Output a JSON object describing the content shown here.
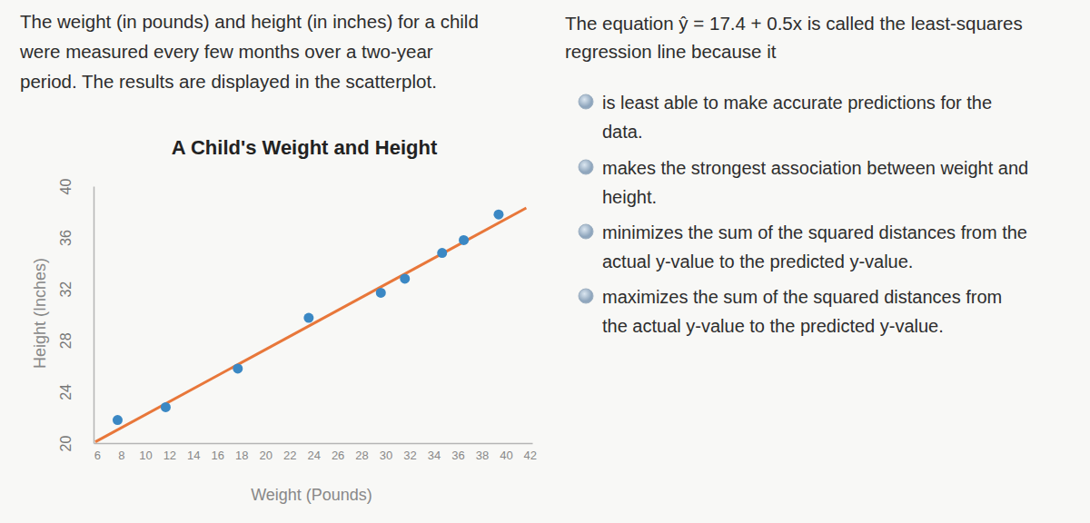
{
  "question": [
    "The weight (in pounds) and height (in inches) for a child",
    "were measured every few months over a two-year",
    "period. The results are displayed in the scatterplot."
  ],
  "prompt": [
    "The equation ŷ = 17.4 + 0.5x is called the least-squares",
    "regression line because it"
  ],
  "options": [
    [
      "is least able to make accurate predictions for the",
      "data."
    ],
    [
      "makes the strongest association between weight and",
      "height."
    ],
    [
      "minimizes the sum of the squared distances from the",
      "actual y-value to the predicted y-value."
    ],
    [
      "maximizes the sum of the squared distances from",
      "the actual y-value to the predicted y-value."
    ]
  ],
  "chart_data": {
    "type": "scatter",
    "title": "A Child's Weight and Height",
    "x_label": "Weight (Pounds)",
    "y_label": "Height (Inches)",
    "xlim": [
      5.7,
      42.2
    ],
    "xticks": [
      6,
      8,
      10,
      12,
      14,
      16,
      18,
      20,
      22,
      24,
      26,
      28,
      30,
      32,
      34,
      36,
      38,
      40,
      42
    ],
    "ylim": [
      20,
      40
    ],
    "yticks": [
      20,
      24,
      28,
      32,
      36,
      40
    ],
    "series": [
      {
        "type": "scatter",
        "color": "#3b88c4",
        "marker": "circle",
        "x": [
          7.7,
          11.7,
          17.7,
          23.6,
          29.6,
          31.6,
          34.7,
          36.5,
          39.4
        ],
        "values": [
          21.8,
          22.8,
          25.8,
          29.75,
          31.7,
          32.8,
          34.8,
          35.8,
          37.8
        ]
      },
      {
        "type": "line",
        "color": "#e8773a",
        "line_style": "solid",
        "x": [
          5.85,
          41.7
        ],
        "values": [
          20.1,
          38.3
        ]
      }
    ]
  }
}
